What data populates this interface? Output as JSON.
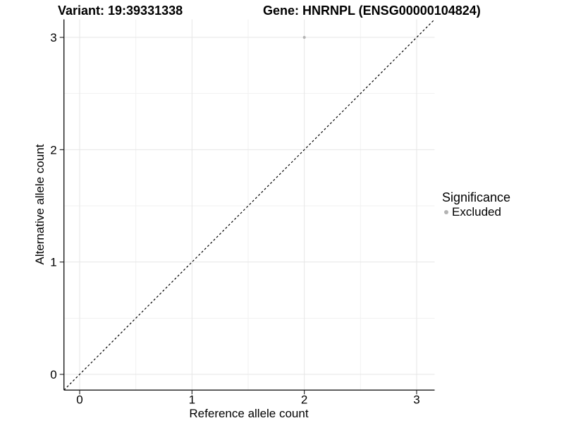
{
  "titles": {
    "left": "Variant: 19:39331338",
    "right": "Gene: HNRNPL (ENSG00000104824)"
  },
  "axes": {
    "x_label": "Reference allele count",
    "y_label": "Alternative allele count"
  },
  "legend": {
    "title": "Significance",
    "entries": [
      {
        "label": "Excluded",
        "color": "#b3b3b3",
        "marker": "dot-icon"
      }
    ],
    "position": "right"
  },
  "chart_data": {
    "type": "scatter",
    "title": "Variant: 19:39331338",
    "subtitle": "Gene: HNRNPL (ENSG00000104824)",
    "xlabel": "Reference allele count",
    "ylabel": "Alternative allele count",
    "xticks": [
      0,
      1,
      2,
      3
    ],
    "yticks": [
      0,
      1,
      2,
      3
    ],
    "minor_ticks": [
      0.5,
      1.5,
      2.5
    ],
    "xlim": [
      -0.14,
      3.16
    ],
    "ylim": [
      -0.14,
      3.16
    ],
    "grid": "major-and-minor",
    "legend_position": "right",
    "series": [
      {
        "name": "Excluded",
        "color": "#b3b3b3",
        "points": [
          {
            "x": 2,
            "y": 3
          }
        ]
      }
    ],
    "reference_line": {
      "type": "identity",
      "equation": "y = x",
      "style": "dashed",
      "color": "#000000"
    },
    "colors": {
      "background": "#ffffff",
      "grid_major": "#e6e6e6",
      "grid_minor": "#f1f1f1",
      "axis_line": "#1a1a1a",
      "tick_text": "#000000",
      "point": "#b3b3b3"
    }
  }
}
